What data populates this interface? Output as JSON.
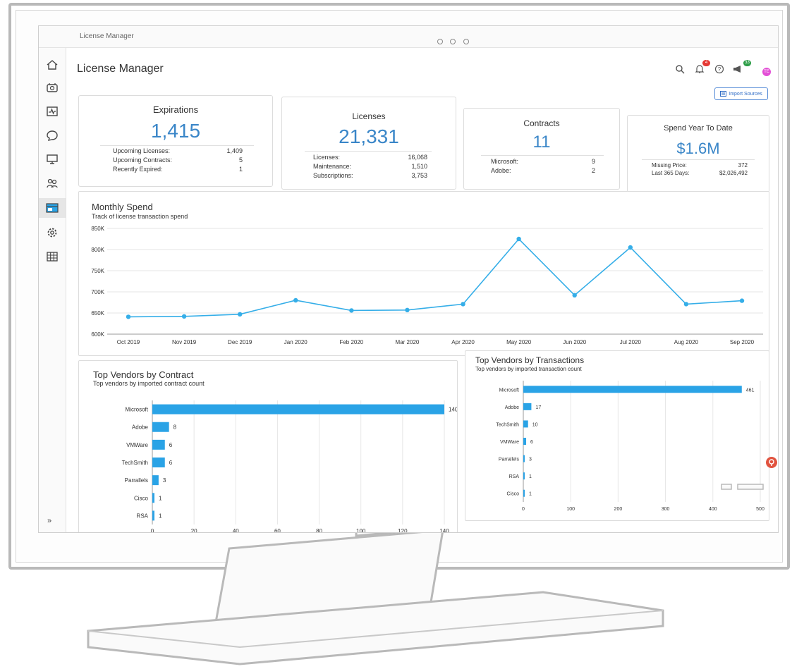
{
  "window": {
    "title": "License Manager"
  },
  "header": {
    "page_title": "License Manager",
    "notifications_count": "4",
    "announcements_count": "33",
    "avatar_initials": "TE",
    "import_button": "Import Sources"
  },
  "sidebar": {
    "items": [
      {
        "icon": "home-icon"
      },
      {
        "icon": "hardware-icon"
      },
      {
        "icon": "activity-icon"
      },
      {
        "icon": "chat-icon"
      },
      {
        "icon": "monitor-icon"
      },
      {
        "icon": "users-icon"
      },
      {
        "icon": "license-manager-icon",
        "active": true
      },
      {
        "icon": "settings-icon"
      },
      {
        "icon": "grid-icon"
      }
    ],
    "expand_label": "»"
  },
  "cards": {
    "expirations": {
      "title": "Expirations",
      "value": "1,415",
      "rows": [
        {
          "label": "Upcoming Licenses:",
          "value": "1,409"
        },
        {
          "label": "Upcoming Contracts:",
          "value": "5"
        },
        {
          "label": "Recently Expired:",
          "value": "1"
        }
      ]
    },
    "licenses": {
      "title": "Licenses",
      "value": "21,331",
      "rows": [
        {
          "label": "Licenses:",
          "value": "16,068"
        },
        {
          "label": "Maintenance:",
          "value": "1,510"
        },
        {
          "label": "Subscriptions:",
          "value": "3,753"
        }
      ]
    },
    "contracts": {
      "title": "Contracts",
      "value": "11",
      "rows": [
        {
          "label": "Microsoft:",
          "value": "9"
        },
        {
          "label": "Adobe:",
          "value": "2"
        }
      ]
    },
    "spend": {
      "title": "Spend Year To Date",
      "value": "$1.6M",
      "rows": [
        {
          "label": "Missing Price:",
          "value": "372"
        },
        {
          "label": "Last 365 Days:",
          "value": "$2,026,492"
        }
      ]
    }
  },
  "colors": {
    "accent": "#3a86c8",
    "bar": "#2aa3e6",
    "line": "#35aee8"
  },
  "chart_data": [
    {
      "type": "line",
      "title": "Monthly Spend",
      "subtitle": "Track of license transaction spend",
      "x": [
        "Oct 2019",
        "Nov 2019",
        "Dec 2019",
        "Jan 2020",
        "Feb 2020",
        "Mar 2020",
        "Apr 2020",
        "May 2020",
        "Jun 2020",
        "Jul 2020",
        "Aug 2020",
        "Sep 2020"
      ],
      "values": [
        641000,
        642000,
        647000,
        680000,
        656000,
        657000,
        671000,
        825000,
        692000,
        805000,
        671000,
        679000
      ],
      "y_ticks": [
        "600K",
        "650K",
        "700K",
        "750K",
        "800K",
        "850K"
      ],
      "ylim": [
        600000,
        850000
      ],
      "grid": true
    },
    {
      "type": "bar",
      "orientation": "horizontal",
      "title": "Top Vendors by Contract",
      "subtitle": "Top vendors by imported contract count",
      "categories": [
        "Microsoft",
        "Adobe",
        "VMWare",
        "TechSmith",
        "Parrallels",
        "Cisco",
        "RSA"
      ],
      "values": [
        140,
        8,
        6,
        6,
        3,
        1,
        1
      ],
      "x_ticks": [
        "0",
        "20",
        "40",
        "60",
        "80",
        "100",
        "120",
        "140"
      ],
      "xlim": [
        0,
        140
      ],
      "grid": true
    },
    {
      "type": "bar",
      "orientation": "horizontal",
      "title": "Top Vendors by Transactions",
      "subtitle": "Top vendors by imported transaction count",
      "categories": [
        "Microsoft",
        "Adobe",
        "TechSmith",
        "VMWare",
        "Parrallels",
        "RSA",
        "Cisco"
      ],
      "values": [
        461,
        17,
        10,
        6,
        3,
        1,
        1
      ],
      "x_ticks": [
        "0",
        "100",
        "200",
        "300",
        "400",
        "500"
      ],
      "xlim": [
        0,
        500
      ],
      "grid": true
    }
  ]
}
